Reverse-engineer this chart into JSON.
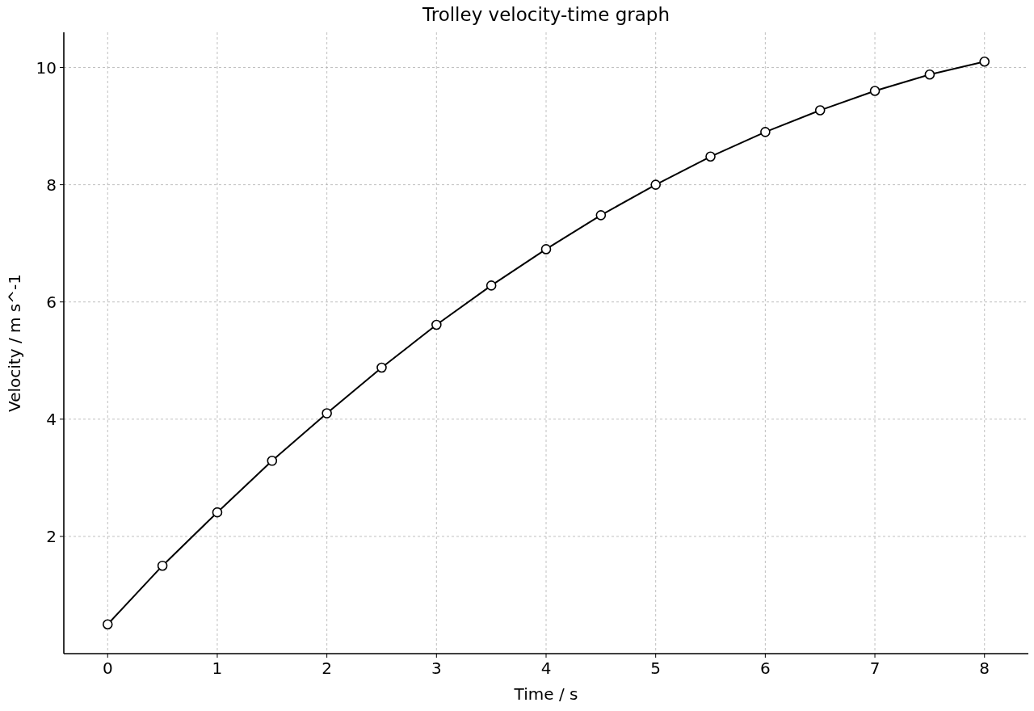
{
  "chart_data": {
    "type": "line",
    "title": "Trolley velocity-time graph",
    "xlabel": "Time / s",
    "ylabel": "Velocity / m s^-1",
    "x": [
      0,
      0.5,
      1,
      1.5,
      2,
      2.5,
      3,
      3.5,
      4,
      4.5,
      5,
      5.5,
      6,
      6.5,
      7,
      7.5,
      8
    ],
    "series": [
      {
        "color": "#000000",
        "values": [
          0.5,
          1.5,
          2.41,
          3.29,
          4.1,
          4.88,
          5.61,
          6.28,
          6.9,
          7.48,
          8.0,
          8.48,
          8.9,
          9.27,
          9.6,
          9.88,
          10.1
        ]
      }
    ],
    "xlim": [
      -0.4,
      8.4
    ],
    "xticks": [
      0,
      1,
      2,
      3,
      4,
      5,
      6,
      7,
      8
    ],
    "ylim": [
      0,
      10.6
    ],
    "yticks": [
      2,
      4,
      6,
      8,
      10
    ],
    "grid": true,
    "marker": "circle",
    "line_style": "solid"
  }
}
